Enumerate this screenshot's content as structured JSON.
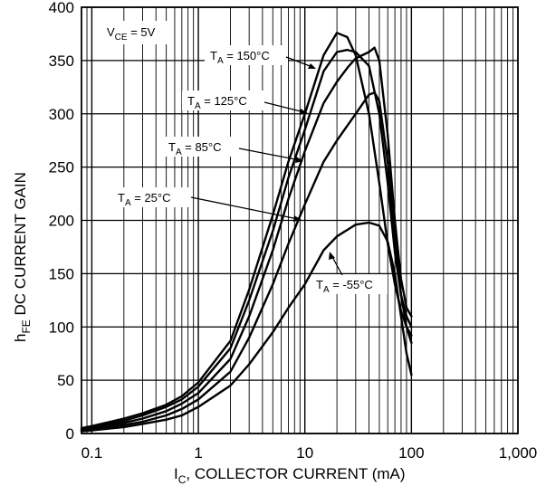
{
  "chart_data": {
    "type": "line",
    "title": "",
    "xlabel": {
      "main": "I",
      "sub": "C",
      "rest": ", COLLECTOR CURRENT (mA)"
    },
    "ylabel": {
      "main": "h",
      "sub": "FE",
      "rest": " DC CURRENT GAIN"
    },
    "x_scale": "log",
    "xlim": [
      0.08,
      1000
    ],
    "ylim": [
      0,
      400
    ],
    "grid": true,
    "x_ticks": [
      {
        "value": 0.1,
        "label": "0.1"
      },
      {
        "value": 1,
        "label": "1"
      },
      {
        "value": 10,
        "label": "10"
      },
      {
        "value": 100,
        "label": "100"
      },
      {
        "value": 1000,
        "label": "1,000"
      }
    ],
    "y_ticks": [
      {
        "value": 0,
        "label": "0"
      },
      {
        "value": 50,
        "label": "50"
      },
      {
        "value": 100,
        "label": "100"
      },
      {
        "value": 150,
        "label": "150"
      },
      {
        "value": 200,
        "label": "200"
      },
      {
        "value": 250,
        "label": "250"
      },
      {
        "value": 300,
        "label": "300"
      },
      {
        "value": 350,
        "label": "350"
      },
      {
        "value": 400,
        "label": "400"
      }
    ],
    "condition": {
      "main": "V",
      "sub": "CE",
      "rest": " = 5V"
    },
    "series": [
      {
        "name": "T_A = 150°C",
        "label": {
          "main": "T",
          "sub": "A",
          "rest": " = 150°C"
        },
        "x": [
          0.08,
          0.1,
          0.2,
          0.3,
          0.5,
          0.7,
          1,
          2,
          3,
          5,
          7,
          10,
          15,
          20,
          25,
          30,
          40,
          50,
          60,
          70,
          80,
          90,
          100
        ],
        "y": [
          5,
          7,
          14,
          19,
          27,
          35,
          48,
          87,
          135,
          205,
          255,
          300,
          355,
          376,
          372,
          355,
          300,
          235,
          178,
          140,
          115,
          100,
          92
        ]
      },
      {
        "name": "T_A = 125°C",
        "label": {
          "main": "T",
          "sub": "A",
          "rest": " = 125°C"
        },
        "x": [
          0.08,
          0.1,
          0.2,
          0.3,
          0.5,
          0.7,
          1,
          2,
          3,
          5,
          7,
          10,
          15,
          20,
          25,
          30,
          40,
          50,
          60,
          70,
          80,
          90,
          100
        ],
        "y": [
          4,
          6,
          12,
          17,
          25,
          32,
          44,
          80,
          125,
          190,
          240,
          285,
          340,
          358,
          360,
          358,
          345,
          300,
          235,
          170,
          130,
          110,
          100
        ]
      },
      {
        "name": "T_A = 85°C",
        "label": {
          "main": "T",
          "sub": "A",
          "rest": " = 85°C"
        },
        "x": [
          0.08,
          0.1,
          0.2,
          0.3,
          0.5,
          0.7,
          1,
          2,
          3,
          5,
          7,
          10,
          15,
          20,
          25,
          30,
          40,
          45,
          50,
          60,
          70,
          80,
          90,
          100
        ],
        "y": [
          3,
          5,
          10,
          14,
          21,
          28,
          38,
          70,
          110,
          172,
          220,
          265,
          310,
          330,
          343,
          352,
          358,
          362,
          350,
          280,
          200,
          145,
          118,
          110
        ]
      },
      {
        "name": "T_A = 25°C",
        "label": {
          "main": "T",
          "sub": "A",
          "rest": " = 25°C"
        },
        "x": [
          0.08,
          0.1,
          0.2,
          0.3,
          0.5,
          0.7,
          1,
          2,
          3,
          5,
          7,
          10,
          15,
          20,
          30,
          40,
          45,
          50,
          60,
          70,
          80,
          90,
          100
        ],
        "y": [
          3,
          4,
          8,
          11,
          17,
          23,
          32,
          58,
          90,
          140,
          178,
          215,
          255,
          275,
          300,
          318,
          320,
          312,
          255,
          185,
          130,
          100,
          85
        ]
      },
      {
        "name": "T_A = -55°C",
        "label": {
          "main": "T",
          "sub": "A",
          "rest": " = -55°C"
        },
        "x": [
          0.08,
          0.1,
          0.2,
          0.3,
          0.5,
          0.7,
          1,
          2,
          3,
          5,
          7,
          10,
          15,
          20,
          30,
          40,
          50,
          60,
          70,
          80,
          90,
          100
        ],
        "y": [
          2,
          3,
          6,
          9,
          13,
          17,
          25,
          45,
          65,
          95,
          118,
          140,
          172,
          185,
          196,
          198,
          195,
          180,
          150,
          110,
          75,
          55
        ]
      }
    ]
  }
}
